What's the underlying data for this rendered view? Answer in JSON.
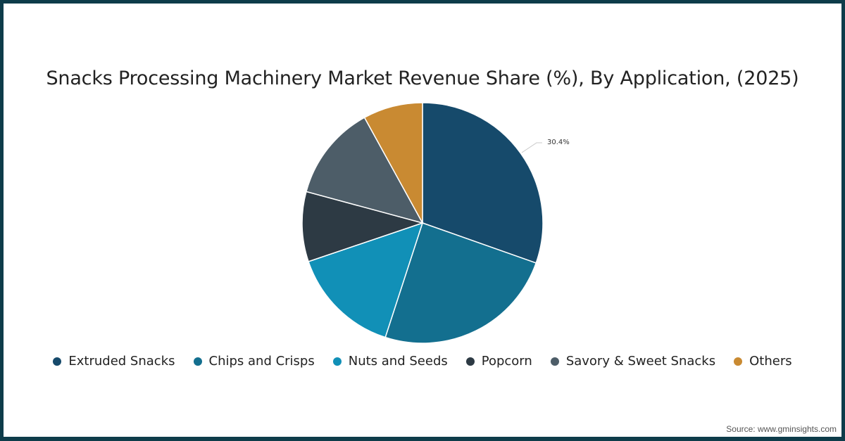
{
  "title": "Snacks Processing Machinery Market Revenue Share (%), By Application, (2025)",
  "source": "Source: www.gminsights.com",
  "chart_data": {
    "type": "pie",
    "title": "Snacks Processing Machinery Market Revenue Share (%), By Application, (2025)",
    "categories": [
      "Extruded Snacks",
      "Chips and Crisps",
      "Nuts and Seeds",
      "Popcorn",
      "Savory & Sweet Snacks",
      "Others"
    ],
    "values": [
      30.4,
      24.6,
      14.8,
      9.4,
      12.8,
      8.0
    ],
    "colors": [
      "#164a6b",
      "#136f8f",
      "#1190b7",
      "#2d3a44",
      "#4d5d68",
      "#c98a32"
    ],
    "annotations": [
      {
        "category": "Extruded Snacks",
        "label": "30.4%"
      }
    ],
    "legend_position": "bottom",
    "start_angle_deg": 0,
    "direction": "clockwise"
  },
  "legend": [
    {
      "label": "Extruded Snacks",
      "color": "#164a6b"
    },
    {
      "label": "Chips and Crisps",
      "color": "#136f8f"
    },
    {
      "label": "Nuts and Seeds",
      "color": "#1190b7"
    },
    {
      "label": "Popcorn",
      "color": "#2d3a44"
    },
    {
      "label": "Savory & Sweet Snacks",
      "color": "#4d5d68"
    },
    {
      "label": "Others",
      "color": "#c98a32"
    }
  ],
  "data_label": "30.4%"
}
